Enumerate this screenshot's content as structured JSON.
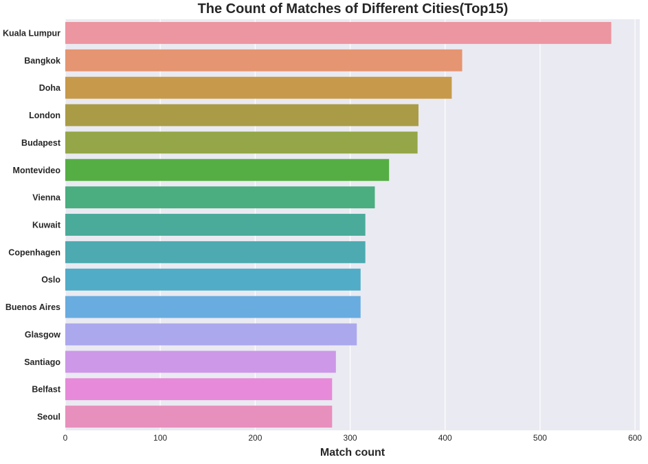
{
  "chart_data": {
    "type": "bar",
    "orientation": "horizontal",
    "title": "The Count of Matches of Different Cities(Top15)",
    "xlabel": "Match count",
    "ylabel": "",
    "categories": [
      "Kuala Lumpur",
      "Bangkok",
      "Doha",
      "London",
      "Budapest",
      "Montevideo",
      "Vienna",
      "Kuwait",
      "Copenhagen",
      "Oslo",
      "Buenos Aires",
      "Glasgow",
      "Santiago",
      "Belfast",
      "Seoul"
    ],
    "values": [
      575,
      418,
      407,
      372,
      371,
      341,
      326,
      316,
      316,
      311,
      311,
      307,
      285,
      281,
      281
    ],
    "colors": [
      "#ec96a1",
      "#e59572",
      "#c69a4a",
      "#aa9c46",
      "#94a647",
      "#55ae44",
      "#4aae80",
      "#4aab9a",
      "#4caab0",
      "#50acc7",
      "#69acdf",
      "#aba8ee",
      "#cd98e8",
      "#e68ad9",
      "#e78fbd"
    ],
    "xlim": [
      0,
      605
    ],
    "xticks": [
      0,
      100,
      200,
      300,
      400,
      500,
      600
    ],
    "grid": true,
    "background": "#eaeaf2"
  }
}
